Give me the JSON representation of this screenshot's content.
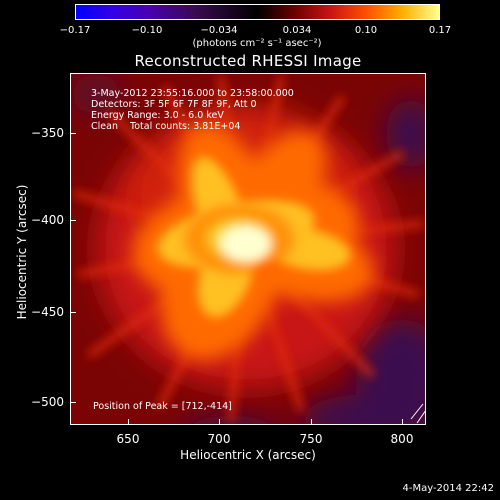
{
  "colorbar": {
    "ticks": [
      "−0.17",
      "−0.10",
      "−0.034",
      "0.034",
      "0.10",
      "0.17"
    ],
    "unit_text": "(photons cm⁻² s⁻¹ asec⁻²)"
  },
  "title": "Reconstructed RHESSI Image",
  "info": {
    "time_range": "3-May-2012 23:55:16.000 to 23:58:00.000",
    "detectors": "Detectors: 3F 5F 6F 7F 8F 9F, Att 0",
    "energy": "Energy Range: 3.0 - 6.0 keV",
    "method": "Clean    Total counts: 3.81E+04",
    "peak": "Position of Peak = [712,-414]"
  },
  "axes": {
    "x_title": "Heliocentric X (arcsec)",
    "y_title": "Heliocentric Y (arcsec)",
    "x_ticks": [
      "650",
      "700",
      "750",
      "800"
    ],
    "y_ticks": [
      "−350",
      "−400",
      "−450",
      "−500"
    ]
  },
  "timestamp": "4-May-2014 22:42",
  "colors": {
    "background": "#000000",
    "peak_color": "#ffffa0",
    "outer_color": "#8a0808",
    "negative_region": "#3a0a50"
  }
}
